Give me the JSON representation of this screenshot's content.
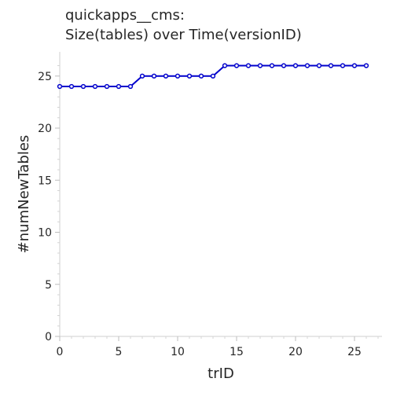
{
  "chart_data": {
    "type": "line",
    "title": "quickapps__cms:",
    "subtitle": "Size(tables) over Time(versionID)",
    "xlabel": "trID",
    "ylabel": "#numNewTables",
    "xlim": [
      0,
      27
    ],
    "ylim": [
      0,
      25
    ],
    "x_ticks": [
      0,
      5,
      10,
      15,
      20,
      25
    ],
    "y_ticks": [
      0,
      5,
      10,
      15,
      20,
      25
    ],
    "grid": false,
    "series": [
      {
        "color": "#0000cc",
        "x": [
          0,
          1,
          2,
          3,
          4,
          5,
          6,
          7,
          8,
          9,
          10,
          11,
          12,
          13,
          14,
          15,
          16,
          17,
          18,
          19,
          20,
          21,
          22,
          23,
          24,
          25,
          26
        ],
        "y": [
          24,
          24,
          24,
          24,
          24,
          24,
          24,
          25,
          25,
          25,
          25,
          25,
          25,
          25,
          26,
          26,
          26,
          26,
          26,
          26,
          26,
          26,
          26,
          26,
          26,
          26,
          26
        ]
      }
    ]
  }
}
